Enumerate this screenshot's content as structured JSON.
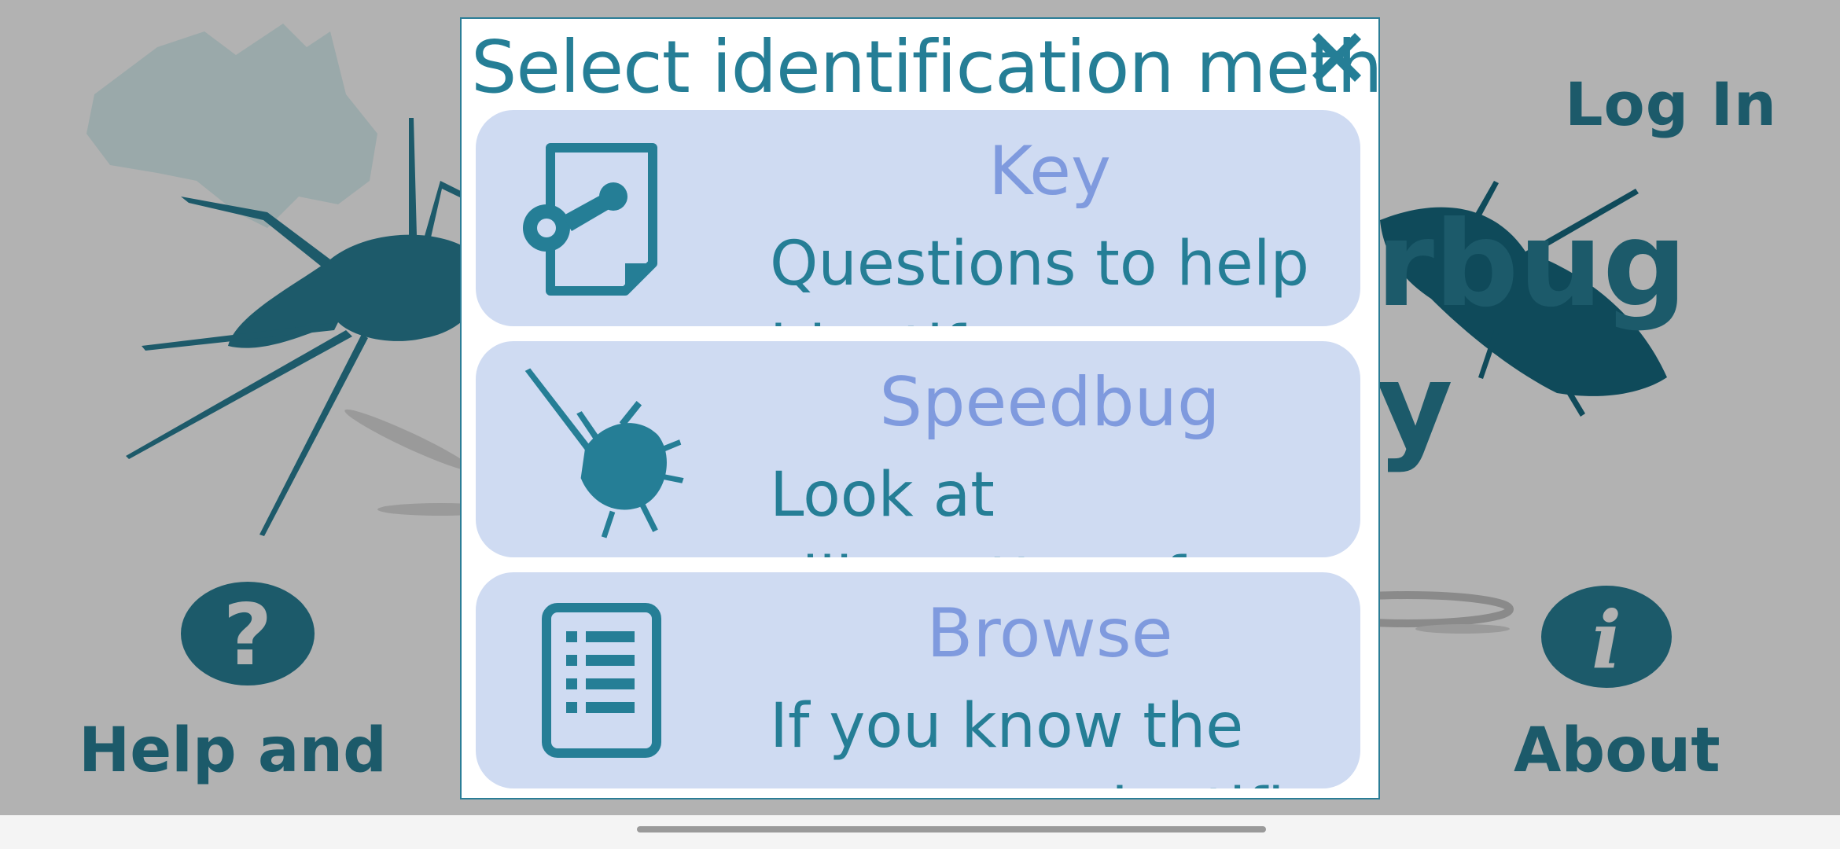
{
  "background": {
    "login_label": "Log In",
    "title_line1": "rbug",
    "title_line2": "y",
    "help_icon_glyph": "?",
    "help_label": "Help and",
    "about_icon_glyph": "i",
    "about_label": "About"
  },
  "dialog": {
    "title": "Select identification method",
    "close_icon": "close-icon",
    "options": [
      {
        "title": "Key",
        "description": "Questions to help identify your",
        "icon": "key-document-icon"
      },
      {
        "title": "Speedbug",
        "description": "Look at silhouettes of waterbugs to",
        "icon": "waterbug-silhouette-icon"
      },
      {
        "title": "Browse",
        "description": "If you know the name or scientific",
        "icon": "list-document-icon"
      }
    ]
  },
  "colors": {
    "dialog_title": "#257e96",
    "option_background": "#cfdbf2",
    "option_title": "#7f9ade",
    "background_accent": "#1c5a6a"
  }
}
